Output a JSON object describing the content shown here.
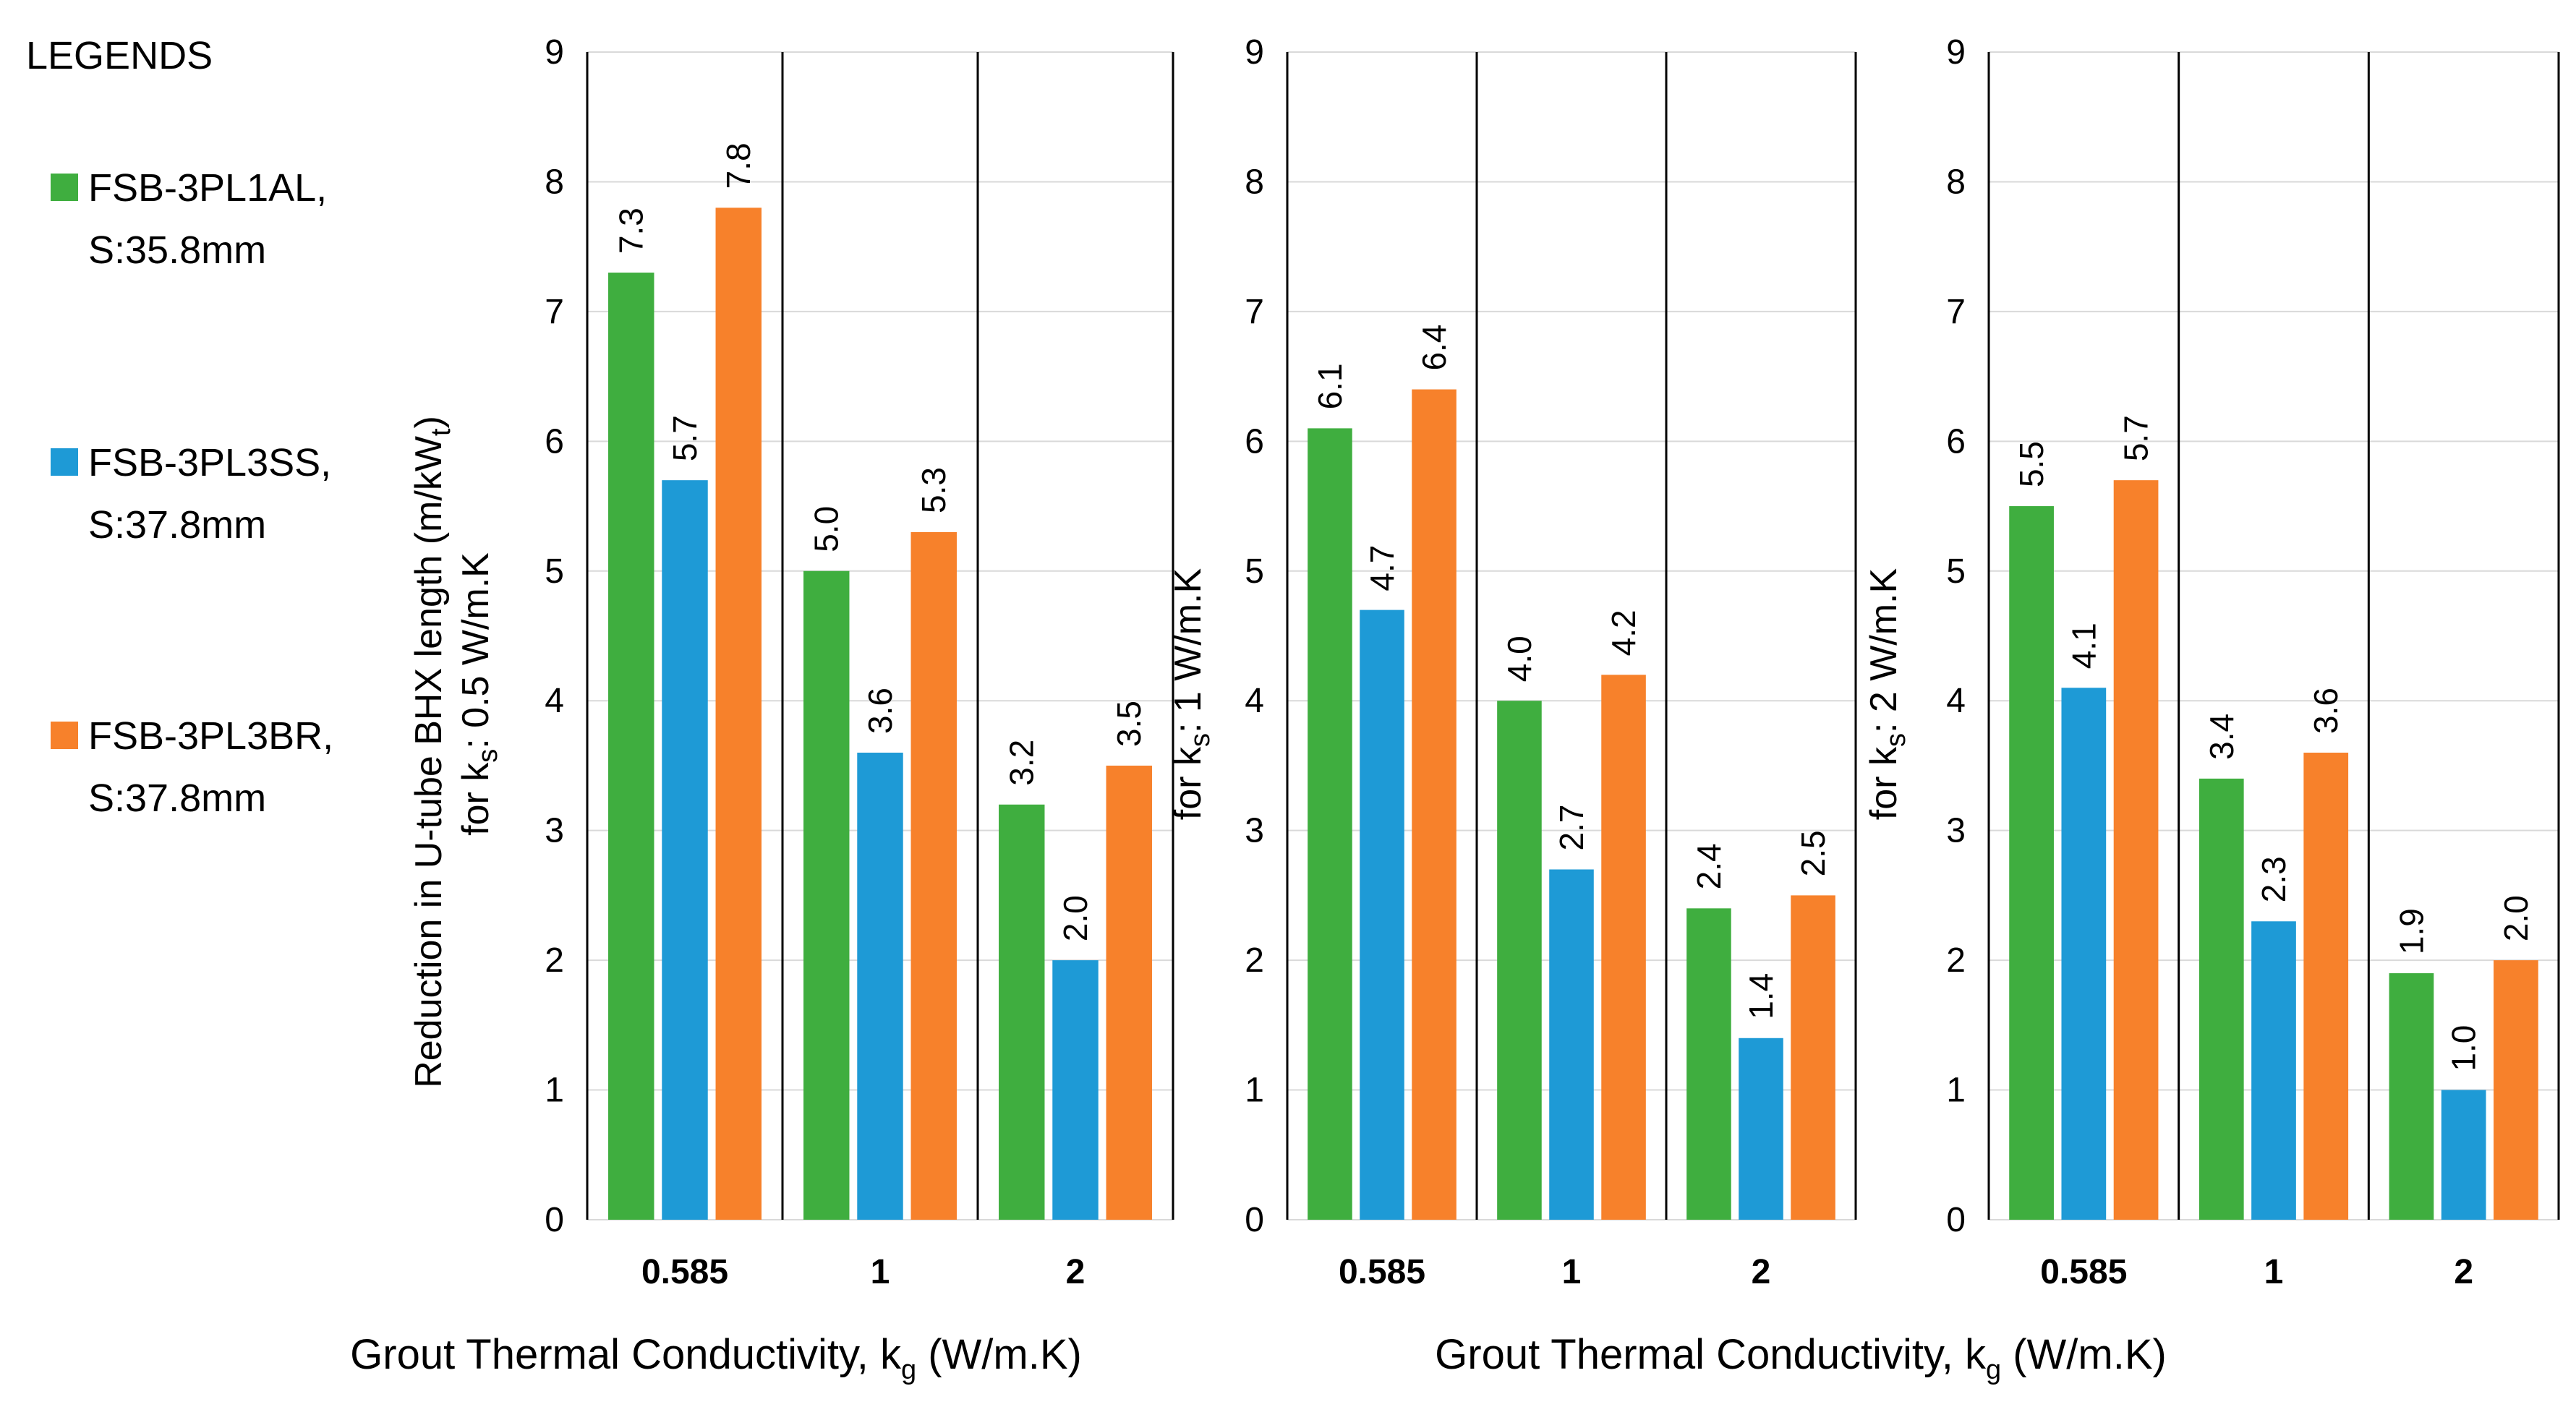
{
  "legend": {
    "title": "LEGENDS",
    "entries": [
      {
        "line1": "FSB-3PL1AL,",
        "line2": "S:35.8mm",
        "color": "#3FAE3F"
      },
      {
        "line1": "FSB-3PL3SS,",
        "line2": "S:37.8mm",
        "color": "#1E9AD6"
      },
      {
        "line1": "FSB-3PL3BR,",
        "line2": "S:37.8mm",
        "color": "#F7812B"
      }
    ]
  },
  "y_title_main": "Reduction in U-tube BHX length (m/kW",
  "y_title_main_sub": "t",
  "y_title_main_end": ")",
  "x_axis": {
    "label_main": "Grout Thermal Conductivity,  k",
    "label_sub": "g",
    "label_end": " (W/m.K)"
  },
  "chart_data": [
    {
      "type": "bar",
      "ylabel_prefix": "for k",
      "ylabel_sub": "s",
      "ylabel_suffix": ": 0.5 W/m.K",
      "categories": [
        "0.585",
        "1",
        "2"
      ],
      "series": [
        {
          "name": "FSB-3PL1AL, S:35.8mm",
          "values": [
            7.3,
            5.0,
            3.2
          ],
          "labels": [
            "7.3",
            "5.0",
            "3.2"
          ]
        },
        {
          "name": "FSB-3PL3SS, S:37.8mm",
          "values": [
            5.7,
            3.6,
            2.0
          ],
          "labels": [
            "5.7",
            "3.6",
            "2.0"
          ]
        },
        {
          "name": "FSB-3PL3BR, S:37.8mm",
          "values": [
            7.8,
            5.3,
            3.5
          ],
          "labels": [
            "7.8",
            "5.3",
            "3.5"
          ]
        }
      ],
      "ylim": [
        0,
        9
      ],
      "yticks": [
        "0",
        "1",
        "2",
        "3",
        "4",
        "5",
        "6",
        "7",
        "8",
        "9"
      ],
      "grid": true
    },
    {
      "type": "bar",
      "ylabel_prefix": "for k",
      "ylabel_sub": "s",
      "ylabel_suffix": ": 1 W/m.K",
      "categories": [
        "0.585",
        "1",
        "2"
      ],
      "series": [
        {
          "name": "FSB-3PL1AL, S:35.8mm",
          "values": [
            6.1,
            4.0,
            2.4
          ],
          "labels": [
            "6.1",
            "4.0",
            "2.4"
          ]
        },
        {
          "name": "FSB-3PL3SS, S:37.8mm",
          "values": [
            4.7,
            2.7,
            1.4
          ],
          "labels": [
            "4.7",
            "2.7",
            "1.4"
          ]
        },
        {
          "name": "FSB-3PL3BR, S:37.8mm",
          "values": [
            6.4,
            4.2,
            2.5
          ],
          "labels": [
            "6.4",
            "4.2",
            "2.5"
          ]
        }
      ],
      "ylim": [
        0,
        9
      ],
      "yticks": [
        "0",
        "1",
        "2",
        "3",
        "4",
        "5",
        "6",
        "7",
        "8",
        "9"
      ],
      "grid": true
    },
    {
      "type": "bar",
      "ylabel_prefix": "for k",
      "ylabel_sub": "s",
      "ylabel_suffix": ": 2 W/m.K",
      "categories": [
        "0.585",
        "1",
        "2"
      ],
      "series": [
        {
          "name": "FSB-3PL1AL, S:35.8mm",
          "values": [
            5.5,
            3.4,
            1.9
          ],
          "labels": [
            "5.5",
            "3.4",
            "1.9"
          ]
        },
        {
          "name": "FSB-3PL3SS, S:37.8mm",
          "values": [
            4.1,
            2.3,
            1.0
          ],
          "labels": [
            "4.1",
            "2.3",
            "1.0"
          ]
        },
        {
          "name": "FSB-3PL3BR, S:37.8mm",
          "values": [
            5.7,
            3.6,
            2.0
          ],
          "labels": [
            "5.7",
            "3.6",
            "2.0"
          ]
        }
      ],
      "ylim": [
        0,
        9
      ],
      "yticks": [
        "0",
        "1",
        "2",
        "3",
        "4",
        "5",
        "6",
        "7",
        "8",
        "9"
      ],
      "grid": true
    }
  ]
}
